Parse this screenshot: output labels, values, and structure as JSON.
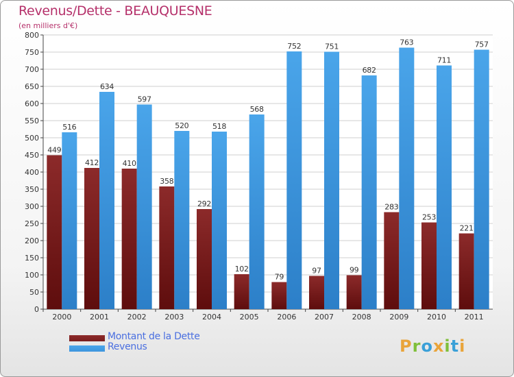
{
  "header": {
    "title": "Revenus/Dette - BEAUQUESNE",
    "subtitle": "(en milliers d'€)"
  },
  "chart_data": {
    "type": "bar",
    "title": "Revenus/Dette - BEAUQUESNE",
    "ylabel": "(en milliers d'€)",
    "xlabel": "",
    "categories": [
      "2000",
      "2001",
      "2002",
      "2003",
      "2004",
      "2005",
      "2006",
      "2007",
      "2008",
      "2009",
      "2010",
      "2011"
    ],
    "series": [
      {
        "name": "Montant de la Dette",
        "color": "#7a1d1d",
        "values": [
          449,
          412,
          410,
          358,
          292,
          102,
          79,
          97,
          99,
          283,
          253,
          221
        ]
      },
      {
        "name": "Revenus",
        "color": "#3d95dd",
        "values": [
          516,
          634,
          597,
          520,
          518,
          568,
          752,
          751,
          682,
          763,
          711,
          757
        ]
      }
    ],
    "ylim": [
      0,
      800
    ],
    "yticks": [
      0,
      50,
      100,
      150,
      200,
      250,
      300,
      350,
      400,
      450,
      500,
      550,
      600,
      650,
      700,
      750,
      800
    ],
    "grid": true,
    "legend": "bottom-left"
  },
  "legend": {
    "items": [
      {
        "label": "Montant de la Dette",
        "color": "#7a1d1d"
      },
      {
        "label": "Revenus",
        "color": "#3d95dd"
      }
    ]
  },
  "brand": {
    "letters": [
      "P",
      "r",
      "o",
      "x",
      "i",
      "t",
      "i"
    ],
    "colors": [
      "#e9a43a",
      "#7fbf3a",
      "#3aa0d8",
      "#e9a43a",
      "#7fbf3a",
      "#3aa0d8",
      "#e9a43a"
    ]
  }
}
